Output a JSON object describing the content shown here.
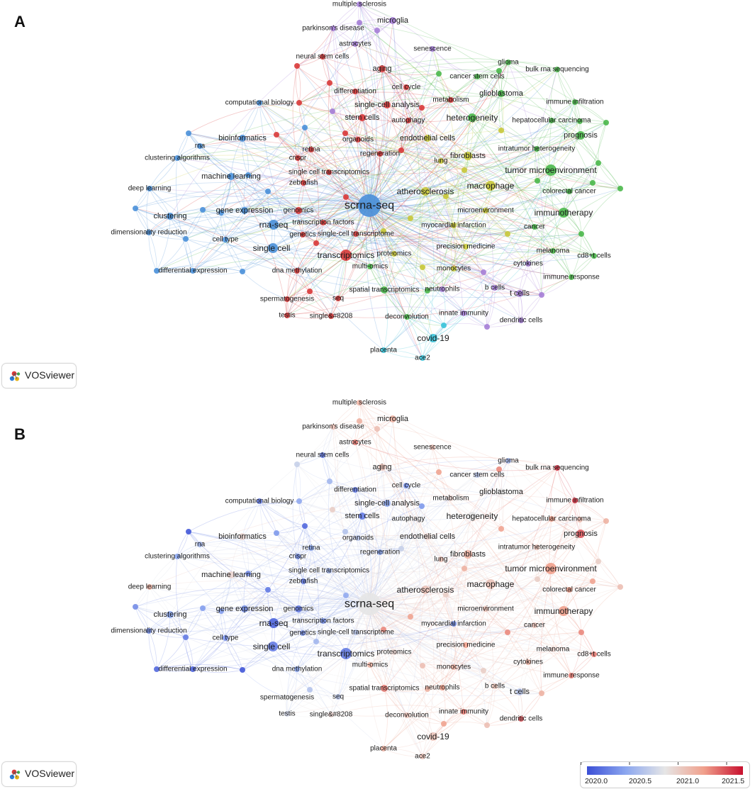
{
  "panels": [
    {
      "letter": "A",
      "overlay": "cluster"
    },
    {
      "letter": "B",
      "overlay": "year"
    }
  ],
  "branding": {
    "logo_text": "VOSviewer",
    "logo_icon": "vosviewer-logo-icon"
  },
  "legend": {
    "colors": [
      "#3b4fd6",
      "#8ca7ef",
      "#e6e6e6",
      "#f0a08c",
      "#c8102e"
    ],
    "ticks": [
      "2020.0",
      "2020.5",
      "2021.0",
      "2021.5"
    ],
    "range": [
      2020.0,
      2021.6
    ]
  },
  "cluster_colors": {
    "blue": "#4a90d9",
    "red": "#d93a3a",
    "green": "#4bb84b",
    "yellow": "#c8c83a",
    "purple": "#a57ed6",
    "cyan": "#3ac3d9"
  },
  "nodes": [
    {
      "label": "scrna-seq",
      "c": "blue",
      "y": 2020.8
    },
    {
      "label": "single cell",
      "c": "blue",
      "y": 2020.2
    },
    {
      "label": "rna-seq",
      "c": "blue",
      "y": 2020.1
    },
    {
      "label": "gene expression",
      "c": "blue",
      "y": 2020.3
    },
    {
      "label": "clustering",
      "c": "blue",
      "y": 2020.4
    },
    {
      "label": "dimensionality reduction",
      "c": "blue",
      "y": 2020.3
    },
    {
      "label": "differential expression",
      "c": "blue",
      "y": 2020.1
    },
    {
      "label": "cell type",
      "c": "blue",
      "y": 2020.3
    },
    {
      "label": "deep learning",
      "c": "blue",
      "y": 2021.1
    },
    {
      "label": "machine learning",
      "c": "blue",
      "y": 2020.9
    },
    {
      "label": "clustering algorithms",
      "c": "blue",
      "y": 2020.4
    },
    {
      "label": "rna",
      "c": "blue",
      "y": 2020.5
    },
    {
      "label": "bioinformatics",
      "c": "blue",
      "y": 2020.9
    },
    {
      "label": "computational biology",
      "c": "blue",
      "y": 2020.2
    },
    {
      "label": "transcriptomics",
      "c": "red",
      "y": 2020.2
    },
    {
      "label": "genomics",
      "c": "red",
      "y": 2020.2
    },
    {
      "label": "genetics",
      "c": "red",
      "y": 2020.3
    },
    {
      "label": "transcription factors",
      "c": "red",
      "y": 2020.3
    },
    {
      "label": "single-cell transcriptome",
      "c": "red",
      "y": 2020.6
    },
    {
      "label": "dna methylation",
      "c": "red",
      "y": 2020.4
    },
    {
      "label": "spermatogenesis",
      "c": "red",
      "y": 2020.8
    },
    {
      "label": "testis",
      "c": "red",
      "y": 2020.7
    },
    {
      "label": "seq",
      "c": "red",
      "y": 2020.6
    },
    {
      "label": "single&#8208",
      "c": "red",
      "y": 2020.9
    },
    {
      "label": "single cell transcriptomics",
      "c": "red",
      "y": 2020.5
    },
    {
      "label": "zebrafish",
      "c": "red",
      "y": 2020.2
    },
    {
      "label": "crispr",
      "c": "red",
      "y": 2020.3
    },
    {
      "label": "retina",
      "c": "red",
      "y": 2020.4
    },
    {
      "label": "organoids",
      "c": "red",
      "y": 2020.6
    },
    {
      "label": "regeneration",
      "c": "red",
      "y": 2020.4
    },
    {
      "label": "stem cells",
      "c": "red",
      "y": 2020.2
    },
    {
      "label": "differentiation",
      "c": "red",
      "y": 2020.2
    },
    {
      "label": "neural stem cells",
      "c": "red",
      "y": 2020.2
    },
    {
      "label": "aging",
      "c": "red",
      "y": 2021.0
    },
    {
      "label": "cell cycle",
      "c": "red",
      "y": 2020.3
    },
    {
      "label": "metabolism",
      "c": "red",
      "y": 2020.9
    },
    {
      "label": "autophagy",
      "c": "red",
      "y": 2020.8
    },
    {
      "label": "single-cell analysis",
      "c": "red",
      "y": 2020.4
    },
    {
      "label": "multiple sclerosis",
      "c": "purple",
      "y": 2021.1
    },
    {
      "label": "parkinson's disease",
      "c": "purple",
      "y": 2021.0
    },
    {
      "label": "microglia",
      "c": "purple",
      "y": 2021.1
    },
    {
      "label": "astrocytes",
      "c": "purple",
      "y": 2021.3
    },
    {
      "label": "senescence",
      "c": "purple",
      "y": 2021.0
    },
    {
      "label": "glioma",
      "c": "green",
      "y": 2020.5
    },
    {
      "label": "bulk rna sequencing",
      "c": "green",
      "y": 2021.5
    },
    {
      "label": "cancer stem cells",
      "c": "green",
      "y": 2020.6
    },
    {
      "label": "glioblastoma",
      "c": "green",
      "y": 2020.8
    },
    {
      "label": "immune infiltration",
      "c": "green",
      "y": 2021.5
    },
    {
      "label": "heterogeneity",
      "c": "green",
      "y": 2020.8
    },
    {
      "label": "hepatocellular carcinoma",
      "c": "green",
      "y": 2021.2
    },
    {
      "label": "prognosis",
      "c": "green",
      "y": 2021.4
    },
    {
      "label": "intratumor heterogeneity",
      "c": "green",
      "y": 2021.0
    },
    {
      "label": "tumor microenvironment",
      "c": "green",
      "y": 2021.2
    },
    {
      "label": "colorectal cancer",
      "c": "green",
      "y": 2021.2
    },
    {
      "label": "immunotherapy",
      "c": "green",
      "y": 2021.2
    },
    {
      "label": "cancer",
      "c": "green",
      "y": 2021.0
    },
    {
      "label": "melanoma",
      "c": "green",
      "y": 2020.9
    },
    {
      "label": "cd8+t cells",
      "c": "green",
      "y": 2021.3
    },
    {
      "label": "immune response",
      "c": "green",
      "y": 2021.3
    },
    {
      "label": "spatial transcriptomics",
      "c": "green",
      "y": 2021.3
    },
    {
      "label": "multi-omics",
      "c": "green",
      "y": 2021.1
    },
    {
      "label": "deconvolution",
      "c": "green",
      "y": 2021.0
    },
    {
      "label": "endothelial cells",
      "c": "yellow",
      "y": 2020.9
    },
    {
      "label": "fibroblasts",
      "c": "yellow",
      "y": 2021.1
    },
    {
      "label": "lung",
      "c": "yellow",
      "y": 2021.0
    },
    {
      "label": "macrophage",
      "c": "yellow",
      "y": 2021.0
    },
    {
      "label": "atherosclerosis",
      "c": "yellow",
      "y": 2021.0
    },
    {
      "label": "microenvironment",
      "c": "yellow",
      "y": 2021.0
    },
    {
      "label": "myocardial infarction",
      "c": "yellow",
      "y": 2020.3
    },
    {
      "label": "precision medicine",
      "c": "yellow",
      "y": 2021.2
    },
    {
      "label": "proteomics",
      "c": "yellow",
      "y": 2020.9
    },
    {
      "label": "monocytes",
      "c": "yellow",
      "y": 2021.1
    },
    {
      "label": "cytokines",
      "c": "purple",
      "y": 2021.1
    },
    {
      "label": "neutrophils",
      "c": "purple",
      "y": 2021.2
    },
    {
      "label": "b cells",
      "c": "purple",
      "y": 2021.0
    },
    {
      "label": "t cells",
      "c": "purple",
      "y": 2020.6
    },
    {
      "label": "innate immunity",
      "c": "purple",
      "y": 2021.3
    },
    {
      "label": "dendritic cells",
      "c": "purple",
      "y": 2021.4
    },
    {
      "label": "covid-19",
      "c": "cyan",
      "y": 2021.0
    },
    {
      "label": "placenta",
      "c": "cyan",
      "y": 2021.1
    },
    {
      "label": "ace2",
      "c": "cyan",
      "y": 2021.0
    }
  ]
}
